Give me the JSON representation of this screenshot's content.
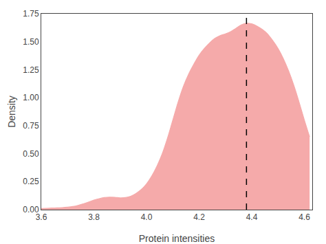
{
  "chart_data": {
    "type": "area",
    "xlabel": "Protein intensities",
    "ylabel": "Density",
    "x": [
      3.6,
      3.62,
      3.64,
      3.66,
      3.68,
      3.7,
      3.72,
      3.74,
      3.76,
      3.78,
      3.8,
      3.82,
      3.84,
      3.86,
      3.88,
      3.9,
      3.92,
      3.94,
      3.96,
      3.98,
      4.0,
      4.02,
      4.04,
      4.06,
      4.08,
      4.1,
      4.12,
      4.14,
      4.16,
      4.18,
      4.2,
      4.22,
      4.24,
      4.26,
      4.28,
      4.3,
      4.32,
      4.34,
      4.36,
      4.38,
      4.4,
      4.42,
      4.44,
      4.46,
      4.48,
      4.5,
      4.52,
      4.54,
      4.56,
      4.58,
      4.6,
      4.62
    ],
    "values": [
      0.01,
      0.012,
      0.014,
      0.016,
      0.018,
      0.022,
      0.028,
      0.038,
      0.052,
      0.068,
      0.085,
      0.098,
      0.108,
      0.112,
      0.11,
      0.105,
      0.108,
      0.12,
      0.145,
      0.18,
      0.23,
      0.3,
      0.39,
      0.5,
      0.64,
      0.8,
      0.96,
      1.1,
      1.21,
      1.3,
      1.38,
      1.44,
      1.49,
      1.53,
      1.555,
      1.57,
      1.59,
      1.62,
      1.65,
      1.665,
      1.66,
      1.64,
      1.61,
      1.57,
      1.51,
      1.44,
      1.35,
      1.24,
      1.11,
      0.96,
      0.8,
      0.65
    ],
    "color": "#F5AAAA",
    "vline": {
      "x": 4.38,
      "color": "black",
      "line_style": "dashed"
    },
    "xlim": [
      3.6,
      4.63
    ],
    "ylim": [
      0.0,
      1.75
    ],
    "xticks": [
      3.6,
      3.8,
      {
        "value": 4.0,
        "label": "4.0"
      },
      4.2,
      4.4,
      4.6
    ],
    "yticks": [
      {
        "value": 0.0,
        "label": "0.00"
      },
      0.25,
      {
        "value": 0.5,
        "label": "0.50"
      },
      0.75,
      {
        "value": 1.0,
        "label": "1.00"
      },
      1.25,
      {
        "value": 1.5,
        "label": "1.50"
      },
      1.75
    ],
    "grid": false
  }
}
